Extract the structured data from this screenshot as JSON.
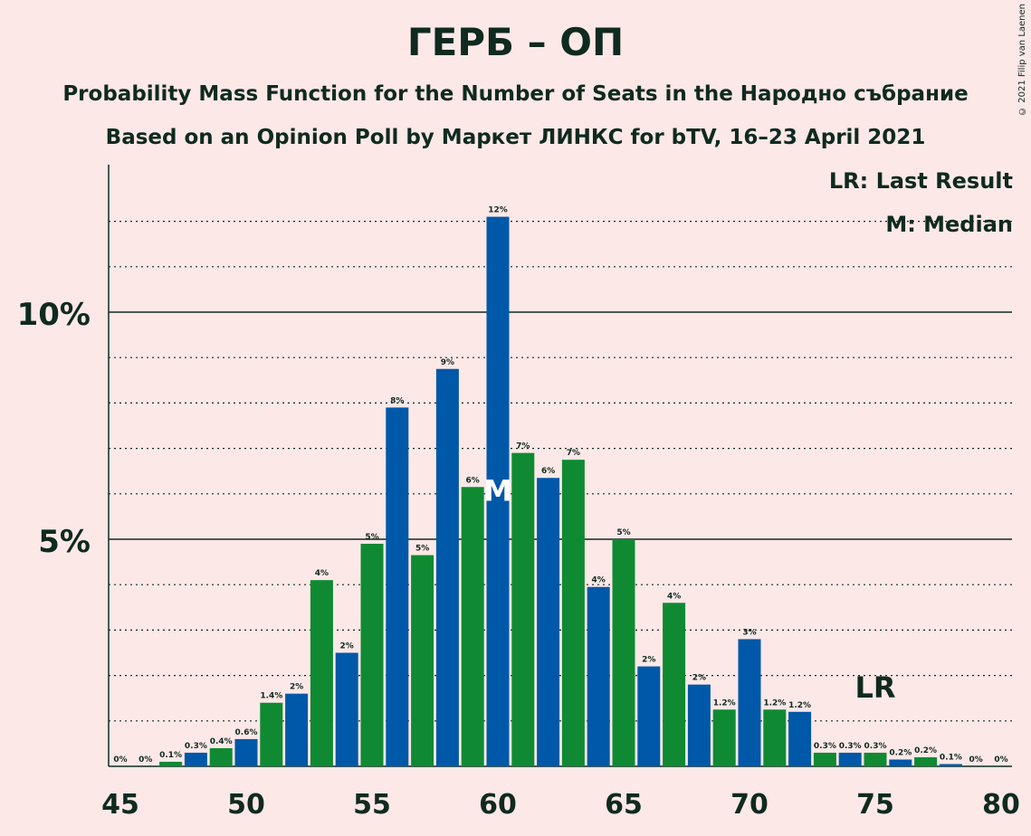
{
  "header": {
    "title": "ГЕРБ – ОП",
    "subtitle1": "Probability Mass Function for the Number of Seats in the Народно събрание",
    "subtitle2": "Based on an Opinion Poll by Маркет ЛИНКС for bTV, 16–23 April 2021",
    "copyright": "© 2021 Filip van Laenen"
  },
  "legend": {
    "last_result": "LR: Last Result",
    "median": "M: Median"
  },
  "colors": {
    "background": "#fde8e8",
    "blue": "#0058a8",
    "green": "#0f8a32",
    "text": "#0f2a1e"
  },
  "chart_data": {
    "type": "bar",
    "x": [
      45,
      46,
      47,
      48,
      49,
      50,
      51,
      52,
      53,
      54,
      55,
      56,
      57,
      58,
      59,
      60,
      61,
      62,
      63,
      64,
      65,
      66,
      67,
      68,
      69,
      70,
      71,
      72,
      73,
      74,
      75,
      76,
      77,
      78,
      79,
      80
    ],
    "values": [
      0,
      0,
      0.1,
      0.3,
      0.4,
      0.6,
      1.4,
      1.6,
      4.1,
      2.5,
      4.9,
      7.9,
      4.65,
      8.75,
      6.15,
      12.1,
      6.9,
      6.35,
      6.75,
      3.95,
      5.0,
      2.2,
      3.6,
      1.8,
      1.25,
      2.8,
      1.25,
      1.2,
      0.3,
      0.3,
      0.3,
      0.15,
      0.2,
      0.05,
      0,
      0
    ],
    "labels": [
      "0%",
      "0%",
      "0.1%",
      "0.3%",
      "0.4%",
      "0.6%",
      "1.4%",
      "2%",
      "4%",
      "2%",
      "5%",
      "8%",
      "5%",
      "9%",
      "6%",
      "12%",
      "7%",
      "6%",
      "7%",
      "4%",
      "5%",
      "2%",
      "4%",
      "2%",
      "1.2%",
      "3%",
      "1.2%",
      "1.2%",
      "0.3%",
      "0.3%",
      "0.3%",
      "0.2%",
      "0.2%",
      "0.1%",
      "0%",
      "0%"
    ],
    "x_ticks": [
      45,
      50,
      55,
      60,
      65,
      70,
      75,
      80
    ],
    "x_tick_labels": [
      "45",
      "50",
      "55",
      "60",
      "65",
      "70",
      "75",
      "80"
    ],
    "y_ticks": [
      5,
      10
    ],
    "y_tick_labels": [
      "5%",
      "10%"
    ],
    "ylim": [
      0,
      13
    ],
    "median_x": 60,
    "median_label": "M",
    "last_result_x": 75,
    "last_result_label": "LR"
  }
}
